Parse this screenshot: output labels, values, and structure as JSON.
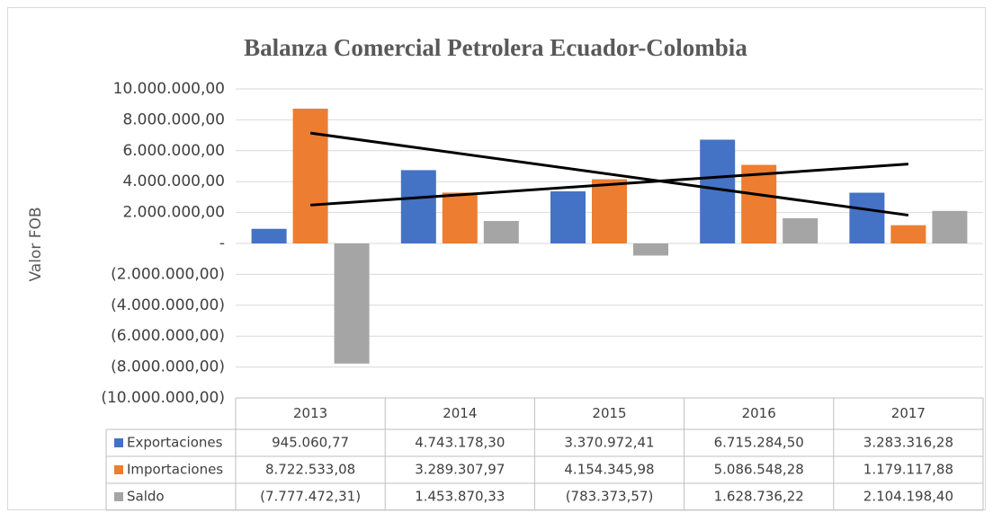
{
  "chart_data": {
    "type": "bar",
    "title": "Balanza Comercial Petrolera Ecuador-Colombia",
    "ylabel": "Valor FOB",
    "categories": [
      "2013",
      "2014",
      "2015",
      "2016",
      "2017"
    ],
    "series": [
      {
        "name": "Exportaciones",
        "color": "#4472c4",
        "trendline": "linear",
        "values": [
          945060.77,
          4743178.3,
          3370972.41,
          6715284.5,
          3283316.28
        ],
        "value_labels": [
          "945.060,77",
          "4.743.178,30",
          "3.370.972,41",
          "6.715.284,50",
          "3.283.316,28"
        ]
      },
      {
        "name": "Importaciones",
        "color": "#ed7d31",
        "trendline": "linear",
        "values": [
          8722533.08,
          3289307.97,
          4154345.98,
          5086548.28,
          1179117.88
        ],
        "value_labels": [
          "8.722.533,08",
          "3.289.307,97",
          "4.154.345,98",
          "5.086.548,28",
          "1.179.117,88"
        ]
      },
      {
        "name": "Saldo",
        "color": "#a5a5a5",
        "values": [
          -7777472.31,
          1453870.33,
          -783373.57,
          1628736.22,
          2104198.4
        ],
        "value_labels": [
          "(7.777.472,31)",
          "1.453.870,33",
          "(783.373,57)",
          "1.628.736,22",
          "2.104.198,40"
        ]
      }
    ],
    "ylim": [
      -10000000,
      10000000
    ],
    "yticks": [
      {
        "value": -10000000,
        "label": "(10.000.000,00)"
      },
      {
        "value": -8000000,
        "label": "(8.000.000,00)"
      },
      {
        "value": -6000000,
        "label": "(6.000.000,00)"
      },
      {
        "value": -4000000,
        "label": "(4.000.000,00)"
      },
      {
        "value": -2000000,
        "label": "(2.000.000,00)"
      },
      {
        "value": 0,
        "label": "-"
      },
      {
        "value": 2000000,
        "label": "2.000.000,00"
      },
      {
        "value": 4000000,
        "label": "4.000.000,00"
      },
      {
        "value": 6000000,
        "label": "6.000.000,00"
      },
      {
        "value": 8000000,
        "label": "8.000.000,00"
      },
      {
        "value": 10000000,
        "label": "10.000.000,00"
      }
    ],
    "grid": true,
    "data_table": true
  }
}
